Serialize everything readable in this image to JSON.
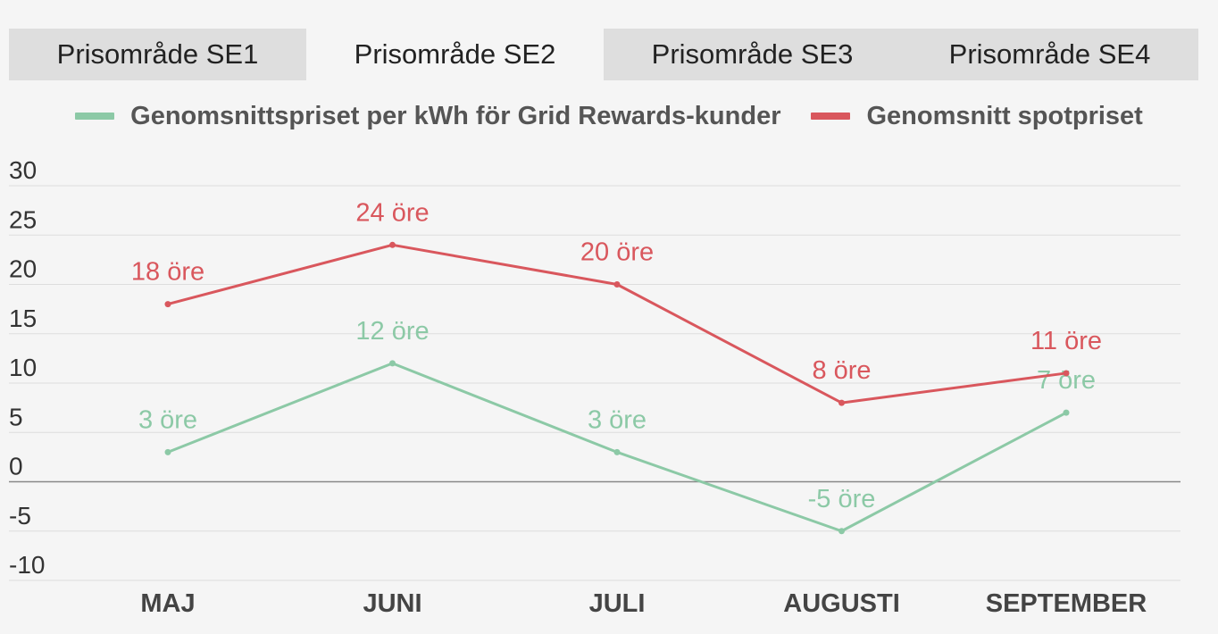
{
  "tabs": [
    {
      "label": "Prisområde SE1",
      "active": false
    },
    {
      "label": "Prisområde SE2",
      "active": true
    },
    {
      "label": "Prisområde SE3",
      "active": false
    },
    {
      "label": "Prisområde SE4",
      "active": false
    }
  ],
  "colors": {
    "grid_rewards": "#8cc9a6",
    "spot": "#d9575d",
    "grid_line": "#dddddd",
    "zero_line": "#888888",
    "axis_text": "#333333",
    "tab_bg": "#dedede",
    "background": "#f5f5f5"
  },
  "chart_data": {
    "type": "line",
    "categories": [
      "MAJ",
      "JUNI",
      "JULI",
      "AUGUSTI",
      "SEPTEMBER"
    ],
    "series": [
      {
        "name": "Genomsnittspriset per kWh för Grid Rewards-kunder",
        "color": "#8cc9a6",
        "values": [
          3,
          12,
          3,
          -5,
          7
        ],
        "labels": [
          "3 öre",
          "12 öre",
          "3 öre",
          "-5 öre",
          "7 öre"
        ]
      },
      {
        "name": "Genomsnitt spotpriset",
        "color": "#d9575d",
        "values": [
          18,
          24,
          20,
          8,
          11
        ],
        "labels": [
          "18 öre",
          "24 öre",
          "20 öre",
          "8 öre",
          "11 öre"
        ]
      }
    ],
    "y_ticks": [
      "30",
      "25",
      "20",
      "15",
      "10",
      "5",
      "0",
      "-5",
      "-10"
    ],
    "ylim": [
      -10,
      30
    ],
    "grid": true,
    "legend_position": "top"
  }
}
